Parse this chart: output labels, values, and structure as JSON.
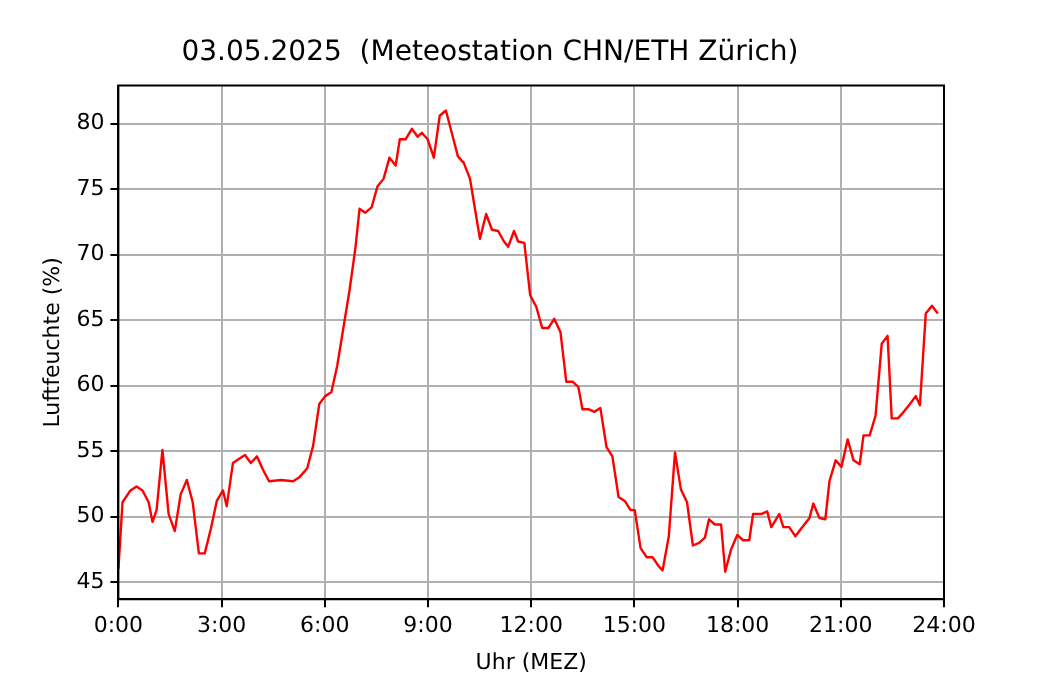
{
  "chart_data": {
    "type": "line",
    "title": "03.05.2025  (Meteostation CHN/ETH Zürich)",
    "xlabel": "Uhr (MEZ)",
    "ylabel": "Luftfeuchte (%)",
    "x": [
      0,
      0.12,
      0.35,
      0.53,
      0.7,
      0.88,
      0.99,
      1.11,
      1.28,
      1.46,
      1.64,
      1.81,
      1.99,
      2.16,
      2.34,
      2.51,
      2.69,
      2.86,
      3.04,
      3.15,
      3.33,
      3.5,
      3.68,
      3.85,
      4.03,
      4.2,
      4.38,
      4.73,
      5.08,
      5.26,
      5.49,
      5.66,
      5.84,
      6.01,
      6.19,
      6.36,
      6.54,
      6.72,
      6.89,
      7.01,
      7.18,
      7.36,
      7.53,
      7.71,
      7.88,
      8.06,
      8.18,
      8.35,
      8.53,
      8.7,
      8.82,
      8.99,
      9.17,
      9.34,
      9.52,
      9.69,
      9.87,
      10.04,
      10.22,
      10.39,
      10.51,
      10.69,
      10.86,
      11.04,
      11.21,
      11.33,
      11.5,
      11.62,
      11.8,
      11.97,
      12.15,
      12.32,
      12.5,
      12.67,
      12.85,
      13.02,
      13.2,
      13.37,
      13.49,
      13.66,
      13.84,
      14.01,
      14.19,
      14.36,
      14.54,
      14.72,
      14.89,
      15.01,
      15.18,
      15.36,
      15.53,
      15.71,
      15.82,
      16.0,
      16.18,
      16.35,
      16.53,
      16.7,
      16.88,
      17.05,
      17.17,
      17.34,
      17.52,
      17.64,
      17.81,
      17.99,
      18.16,
      18.34,
      18.45,
      18.69,
      18.86,
      18.98,
      19.21,
      19.33,
      19.5,
      19.68,
      19.85,
      20.09,
      20.2,
      20.38,
      20.55,
      20.67,
      20.85,
      21.02,
      21.2,
      21.37,
      21.55,
      21.66,
      21.84,
      22.01,
      22.19,
      22.36,
      22.48,
      22.66,
      22.83,
      23.01,
      23.18,
      23.3,
      23.47,
      23.65,
      23.82
    ],
    "series": [
      {
        "color": "#ff0000",
        "values": [
          46.0,
          51.1,
          52.0,
          52.3,
          52.0,
          51.1,
          49.6,
          50.5,
          55.1,
          50.2,
          48.9,
          51.7,
          52.8,
          51.1,
          47.2,
          47.2,
          49.1,
          51.2,
          52.0,
          50.8,
          54.1,
          54.4,
          54.7,
          54.1,
          54.6,
          53.6,
          52.7,
          52.8,
          52.7,
          53.0,
          53.7,
          55.4,
          58.6,
          59.2,
          59.5,
          61.5,
          64.4,
          67.3,
          70.5,
          73.5,
          73.2,
          73.6,
          75.2,
          75.8,
          77.4,
          76.8,
          78.8,
          78.8,
          79.6,
          79.0,
          79.3,
          78.8,
          77.4,
          80.6,
          81.0,
          79.3,
          77.5,
          77.0,
          75.8,
          73.1,
          71.2,
          73.1,
          71.9,
          71.8,
          71.0,
          70.6,
          71.8,
          71.0,
          70.9,
          66.9,
          66.0,
          64.4,
          64.4,
          65.1,
          64.1,
          60.3,
          60.3,
          59.9,
          58.2,
          58.2,
          58.0,
          58.3,
          55.3,
          54.6,
          51.5,
          51.2,
          50.5,
          50.5,
          47.6,
          46.9,
          46.9,
          46.2,
          45.9,
          48.5,
          54.9,
          52.1,
          51.1,
          47.8,
          48.0,
          48.4,
          49.8,
          49.4,
          49.4,
          45.8,
          47.5,
          48.6,
          48.2,
          48.2,
          50.2,
          50.2,
          50.4,
          49.2,
          50.2,
          49.2,
          49.2,
          48.5,
          49.1,
          49.9,
          51.0,
          49.9,
          49.8,
          52.7,
          54.3,
          53.8,
          55.9,
          54.3,
          54.0,
          56.2,
          56.2,
          57.7,
          63.2,
          63.8,
          57.5,
          57.5,
          58.0,
          58.6,
          59.2,
          58.5,
          65.5,
          66.1,
          65.5
        ]
      }
    ],
    "xlim": [
      0,
      24
    ],
    "xticks": [
      {
        "value": 0,
        "label": "0:00"
      },
      {
        "value": 3,
        "label": "3:00"
      },
      {
        "value": 6,
        "label": "6:00"
      },
      {
        "value": 9,
        "label": "9:00"
      },
      {
        "value": 12,
        "label": "12:00"
      },
      {
        "value": 15,
        "label": "15:00"
      },
      {
        "value": 18,
        "label": "18:00"
      },
      {
        "value": 21,
        "label": "21:00"
      },
      {
        "value": 24,
        "label": "24:00"
      }
    ],
    "ylim": [
      43.7,
      82.9
    ],
    "yticks": [
      45,
      50,
      55,
      60,
      65,
      70,
      75,
      80
    ],
    "grid": true,
    "legend": false,
    "marker": "none",
    "line_style": "solid"
  }
}
